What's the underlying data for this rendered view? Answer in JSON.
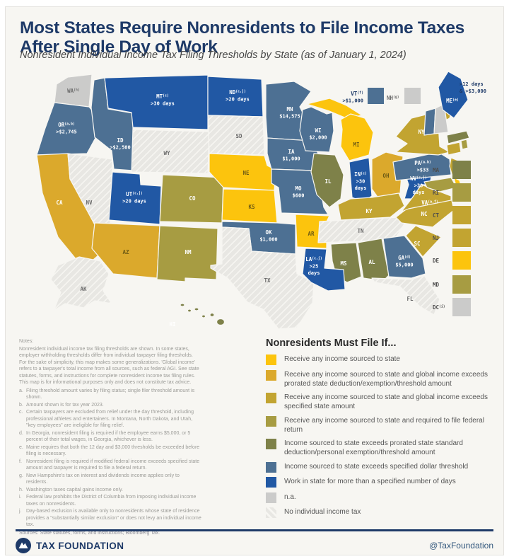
{
  "header": {
    "title": "Most States Require Nonresidents to File Income Taxes After Single Day of Work",
    "subtitle": "Nonresident Individual Income Tax Filing Thresholds by State (as of January 1, 2024)"
  },
  "legend": {
    "title": "Nonresidents Must File If...",
    "categories": [
      {
        "id": 0,
        "label": "Receive any income sourced to state",
        "color": "#FCC40D"
      },
      {
        "id": 1,
        "label": "Receive any income sourced to state and global income exceeds prorated state deduction/exemption/threshold amount",
        "color": "#DBA92C"
      },
      {
        "id": 2,
        "label": "Receive any income sourced to state and global income exceeds specified state amount",
        "color": "#C2A431"
      },
      {
        "id": 3,
        "label": "Receive any income sourced to state and required to file federal return",
        "color": "#A79C42"
      },
      {
        "id": 4,
        "label": "Income sourced to state exceeds prorated state standard deduction/personal exemption/threshold amount",
        "color": "#7E8149"
      },
      {
        "id": 5,
        "label": "Income sourced to state exceeds specified dollar threshold",
        "color": "#4D7093"
      },
      {
        "id": 6,
        "label": "Work in state for more than a specified number of days",
        "color": "#2158A4"
      },
      {
        "id": 7,
        "label": "n.a.",
        "color": "#CBCBCA"
      },
      {
        "id": 8,
        "label": "No individual income tax",
        "color": "#EAE9E6",
        "hatched": true
      }
    ]
  },
  "map": {
    "states": {
      "WA": {
        "cat": 7,
        "sup": "h"
      },
      "OR": {
        "cat": 5,
        "sup": "a,b",
        "lines": [
          ">$2,745"
        ]
      },
      "CA": {
        "cat": 1,
        "light": true
      },
      "NV": {
        "cat": 8
      },
      "ID": {
        "cat": 5,
        "lines": [
          ">$2,500"
        ]
      },
      "MT": {
        "cat": 6,
        "sup": "c",
        "lines": [
          ">30 days"
        ]
      },
      "WY": {
        "cat": 8
      },
      "UT": {
        "cat": 6,
        "sup": "c,j",
        "lines": [
          ">20 days"
        ]
      },
      "AZ": {
        "cat": 1
      },
      "NM": {
        "cat": 3
      },
      "CO": {
        "cat": 3
      },
      "ND": {
        "cat": 6,
        "sup": "c,j",
        "lines": [
          ">20 days"
        ]
      },
      "SD": {
        "cat": 8
      },
      "NE": {
        "cat": 0
      },
      "KS": {
        "cat": 0
      },
      "OK": {
        "cat": 5,
        "lines": [
          "$1,000"
        ]
      },
      "TX": {
        "cat": 8
      },
      "MN": {
        "cat": 5,
        "lines": [
          "$14,575"
        ]
      },
      "IA": {
        "cat": 5,
        "lines": [
          "$1,000"
        ]
      },
      "MO": {
        "cat": 5,
        "lines": [
          "$600"
        ]
      },
      "AR": {
        "cat": 0
      },
      "LA": {
        "cat": 6,
        "sup": "c,j",
        "lines": [
          ">25",
          "days"
        ]
      },
      "WI": {
        "cat": 5,
        "lines": [
          "$2,000"
        ]
      },
      "IL": {
        "cat": 4
      },
      "MI": {
        "cat": 0
      },
      "IN": {
        "cat": 6,
        "sup": "c",
        "lines": [
          ">30",
          "days"
        ]
      },
      "OH": {
        "cat": 1
      },
      "KY": {
        "cat": 2
      },
      "TN": {
        "cat": 8
      },
      "MS": {
        "cat": 4
      },
      "AL": {
        "cat": 4
      },
      "GA": {
        "cat": 5,
        "sup": "d",
        "lines": [
          "$5,000"
        ]
      },
      "FL": {
        "cat": 8
      },
      "SC": {
        "cat": 2
      },
      "NC": {
        "cat": 2
      },
      "VA": {
        "cat": 2,
        "sup": "a,f"
      },
      "WV": {
        "cat": 6,
        "sup": "c,j",
        "lines": [
          ">30",
          "days"
        ]
      },
      "PA": {
        "cat": 5,
        "sup": "a,b",
        "lines": [
          ">$33"
        ]
      },
      "NY": {
        "cat": 2
      },
      "NJ": {
        "cat": 2
      },
      "MD": {
        "cat": 3
      },
      "DE": {
        "cat": 0
      },
      "VT": {
        "cat": 5
      },
      "NH": {
        "cat": 7
      },
      "ME": {
        "cat": 6,
        "sup": "e"
      },
      "MA": {
        "cat": 4
      },
      "CT": {
        "cat": 2
      },
      "RI": {
        "cat": 3
      },
      "AK": {
        "cat": 8
      },
      "HI": {
        "cat": 4
      }
    },
    "east_list": [
      {
        "abbr": "MA",
        "cat": 4
      },
      {
        "abbr": "RI",
        "cat": 3
      },
      {
        "abbr": "CT",
        "cat": 2
      },
      {
        "abbr": "NJ",
        "cat": 2
      },
      {
        "abbr": "DE",
        "cat": 0
      },
      {
        "abbr": "MD",
        "cat": 3
      },
      {
        "abbr": "DC",
        "sup": "i",
        "cat": 7
      }
    ],
    "callouts": {
      "vt": {
        "abbr": "VT",
        "sup": "f",
        "value": ">$1,000",
        "cat": 5
      },
      "nh": {
        "abbr": "NH",
        "sup": "g",
        "cat": 7
      },
      "me_note": [
        ">12 days",
        "& >$3,000"
      ]
    }
  },
  "notes": {
    "heading": "Notes:",
    "intro": "Nonresident individual income tax filing thresholds are shown. In some states, employer withholding thresholds differ from individual taxpayer filing thresholds. For the sake of simplicity, this map makes some generalizations. 'Global income' refers to a taxpayer's total income from all sources, such as federal AGI. See state statutes, forms, and instructions for complete nonresident income tax filing rules. This map is for informational purposes only and does not constitute tax advice.",
    "items": [
      {
        "letter": "a.",
        "text": "Filing threshold amount varies by filing status; single filer threshold amount is shown."
      },
      {
        "letter": "b.",
        "text": "Amount shown is for tax year 2023."
      },
      {
        "letter": "c.",
        "text": "Certain taxpayers are excluded from relief under the day threshold, including professional athletes and entertainers. In Montana, North Dakota, and Utah, \"key employees\" are ineligible for filing relief."
      },
      {
        "letter": "d.",
        "text": "In Georgia, nonresident filing is required if the employee earns $5,000, or 5 percent of their total wages, in Georgia, whichever is less."
      },
      {
        "letter": "e.",
        "text": "Maine requires that both the 12 day and $3,000 thresholds be exceeded before filing is necessary."
      },
      {
        "letter": "f.",
        "text": "Nonresident filing is required if modified federal income exceeds specified state amount and taxpayer is required to file a federal return."
      },
      {
        "letter": "g.",
        "text": "New Hampshire's tax on interest and dividends income applies only to residents."
      },
      {
        "letter": "h.",
        "text": "Washington taxes capital gains income only."
      },
      {
        "letter": "i.",
        "text": "Federal law prohibits the District of Columbia from imposing individual income taxes on nonresidents."
      },
      {
        "letter": "j.",
        "text": "Day-based exclusion is available only to nonresidents whose state of residence provides a \"substantially similar exclusion\" or does not levy an individual income tax."
      }
    ],
    "sources": "Sources: State statutes, forms, and instructions; Bloomberg Tax."
  },
  "footer": {
    "brand": "TAX FOUNDATION",
    "handle": "@TaxFoundation",
    "accent": "#1E3A68"
  }
}
